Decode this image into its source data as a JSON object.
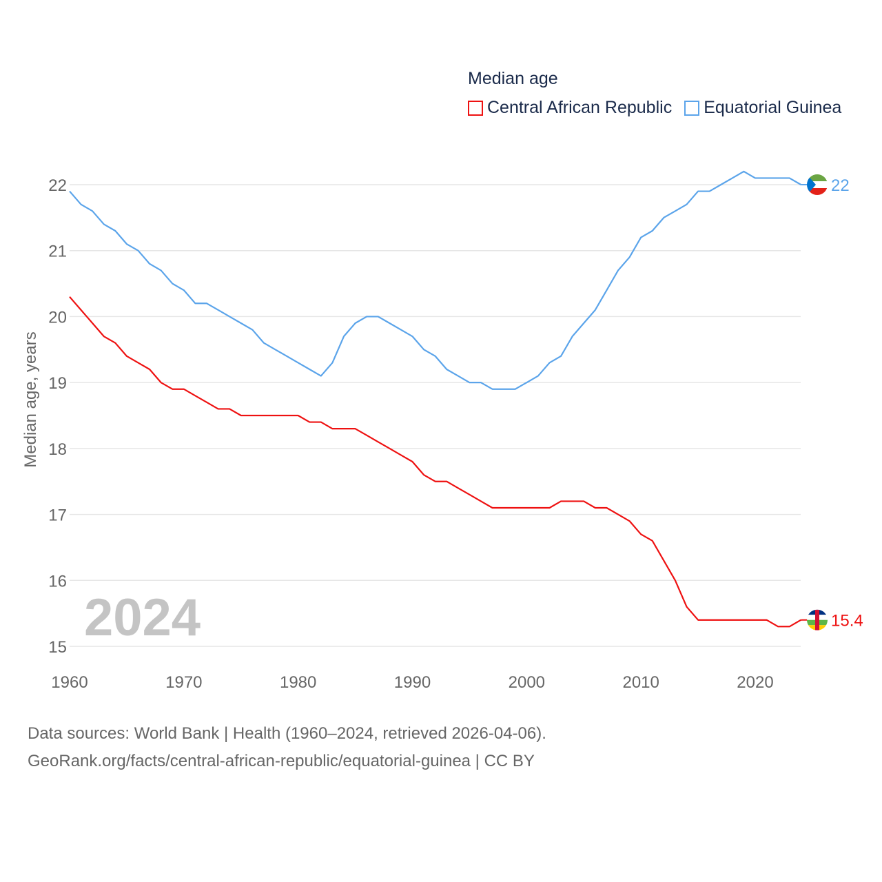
{
  "chart_data": {
    "type": "line",
    "title": "Median age",
    "ylabel": "Median age, years",
    "xlabel": "",
    "xlim": [
      1960,
      2024
    ],
    "ylim": [
      15,
      22
    ],
    "x_ticks": [
      1960,
      1970,
      1980,
      1990,
      2000,
      2010,
      2020
    ],
    "y_ticks": [
      15,
      16,
      17,
      18,
      19,
      20,
      21,
      22
    ],
    "grid": true,
    "legend_position": "top-right",
    "year_watermark": "2024",
    "x": [
      1960,
      1961,
      1962,
      1963,
      1964,
      1965,
      1966,
      1967,
      1968,
      1969,
      1970,
      1971,
      1972,
      1973,
      1974,
      1975,
      1976,
      1977,
      1978,
      1979,
      1980,
      1981,
      1982,
      1983,
      1984,
      1985,
      1986,
      1987,
      1988,
      1989,
      1990,
      1991,
      1992,
      1993,
      1994,
      1995,
      1996,
      1997,
      1998,
      1999,
      2000,
      2001,
      2002,
      2003,
      2004,
      2005,
      2006,
      2007,
      2008,
      2009,
      2010,
      2011,
      2012,
      2013,
      2014,
      2015,
      2016,
      2017,
      2018,
      2019,
      2020,
      2021,
      2022,
      2023,
      2024
    ],
    "series": [
      {
        "name": "Central African Republic",
        "color": "#ee1111",
        "end_label": "15.4",
        "values": [
          20.3,
          20.1,
          19.9,
          19.7,
          19.6,
          19.4,
          19.3,
          19.2,
          19.0,
          18.9,
          18.9,
          18.8,
          18.7,
          18.6,
          18.6,
          18.5,
          18.5,
          18.5,
          18.5,
          18.5,
          18.5,
          18.4,
          18.4,
          18.3,
          18.3,
          18.3,
          18.2,
          18.1,
          18.0,
          17.9,
          17.8,
          17.6,
          17.5,
          17.5,
          17.4,
          17.3,
          17.2,
          17.1,
          17.1,
          17.1,
          17.1,
          17.1,
          17.1,
          17.2,
          17.2,
          17.2,
          17.1,
          17.1,
          17.0,
          16.9,
          16.7,
          16.6,
          16.3,
          16.0,
          15.6,
          15.4,
          15.4,
          15.4,
          15.4,
          15.4,
          15.4,
          15.4,
          15.3,
          15.3,
          15.4
        ]
      },
      {
        "name": "Equatorial Guinea",
        "color": "#5ba4ea",
        "end_label": "22",
        "values": [
          21.9,
          21.7,
          21.6,
          21.4,
          21.3,
          21.1,
          21.0,
          20.8,
          20.7,
          20.5,
          20.4,
          20.2,
          20.2,
          20.1,
          20.0,
          19.9,
          19.8,
          19.6,
          19.5,
          19.4,
          19.3,
          19.2,
          19.1,
          19.3,
          19.7,
          19.9,
          20.0,
          20.0,
          19.9,
          19.8,
          19.7,
          19.5,
          19.4,
          19.2,
          19.1,
          19.0,
          19.0,
          18.9,
          18.9,
          18.9,
          19.0,
          19.1,
          19.3,
          19.4,
          19.7,
          19.9,
          20.1,
          20.4,
          20.7,
          20.9,
          21.2,
          21.3,
          21.5,
          21.6,
          21.7,
          21.9,
          21.9,
          22.0,
          22.1,
          22.2,
          22.1,
          22.1,
          22.1,
          22.1,
          22.0
        ]
      }
    ]
  },
  "footer": {
    "line1": "Data sources: World Bank | Health (1960–2024, retrieved 2026-04-06).",
    "line2": "GeoRank.org/facts/central-african-republic/equatorial-guinea | CC BY"
  }
}
